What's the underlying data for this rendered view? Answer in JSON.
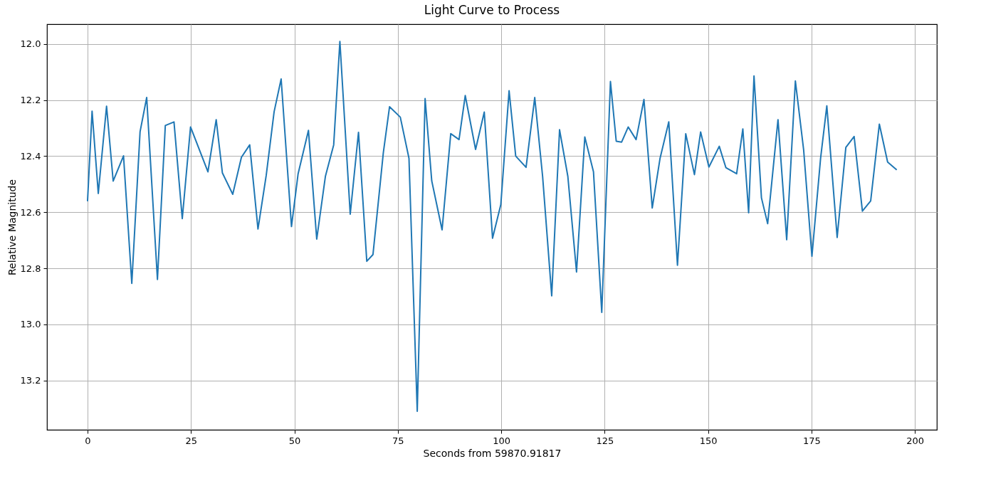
{
  "chart_data": {
    "type": "line",
    "title": "Light Curve to Process",
    "xlabel": "Seconds from 59870.91817",
    "ylabel": "Relative Magnitude",
    "x": [
      0,
      1.1,
      2.6,
      4.6,
      6.2,
      8.7,
      10.7,
      12.7,
      14.3,
      16.9,
      18.8,
      20.9,
      22.9,
      24.9,
      29.1,
      31.1,
      32.6,
      35.1,
      37.2,
      39.2,
      41.2,
      43.2,
      45.1,
      46.8,
      49.3,
      50.9,
      53.4,
      55.4,
      57.5,
      59.5,
      61.0,
      63.5,
      65.5,
      67.5,
      69.0,
      71.5,
      73.0,
      75.6,
      77.7,
      79.7,
      81.6,
      83.2,
      85.7,
      87.8,
      89.8,
      91.3,
      93.8,
      95.9,
      97.9,
      99.9,
      101.9,
      103.5,
      106.0,
      108.1,
      110.0,
      112.2,
      114.1,
      116.1,
      118.2,
      120.2,
      122.3,
      124.3,
      126.4,
      127.8,
      129.1,
      130.7,
      132.6,
      134.5,
      136.5,
      138.4,
      140.5,
      142.6,
      144.6,
      146.7,
      148.2,
      150.2,
      152.7,
      154.3,
      156.9,
      158.4,
      159.8,
      161.1,
      162.9,
      164.4,
      166.9,
      169.0,
      171.1,
      173.1,
      175.1,
      177.2,
      178.7,
      181.2,
      183.3,
      185.3,
      187.3,
      189.3,
      191.4,
      193.4,
      195.6
    ],
    "series": [
      {
        "color": "#1f77b4",
        "values": [
          12.561,
          12.24,
          12.533,
          12.222,
          12.489,
          12.399,
          12.854,
          12.313,
          12.191,
          12.84,
          12.291,
          12.278,
          12.623,
          12.296,
          12.456,
          12.27,
          12.46,
          12.536,
          12.404,
          12.36,
          12.66,
          12.468,
          12.242,
          12.125,
          12.651,
          12.463,
          12.308,
          12.696,
          12.472,
          12.36,
          11.991,
          12.607,
          12.315,
          12.775,
          12.751,
          12.388,
          12.224,
          12.261,
          12.408,
          13.31,
          12.195,
          12.488,
          12.663,
          12.32,
          12.341,
          12.184,
          12.376,
          12.243,
          12.693,
          12.573,
          12.167,
          12.4,
          12.44,
          12.191,
          12.472,
          12.898,
          12.306,
          12.472,
          12.813,
          12.332,
          12.456,
          12.957,
          12.134,
          12.347,
          12.35,
          12.296,
          12.341,
          12.198,
          12.585,
          12.407,
          12.278,
          12.789,
          12.32,
          12.466,
          12.314,
          12.439,
          12.365,
          12.441,
          12.463,
          12.303,
          12.602,
          12.114,
          12.549,
          12.641,
          12.27,
          12.698,
          12.132,
          12.378,
          12.757,
          12.407,
          12.221,
          12.69,
          12.369,
          12.33,
          12.596,
          12.56,
          12.286,
          12.421,
          12.449
        ]
      }
    ],
    "xlim": [
      -9.8,
      205.3
    ],
    "ylim": [
      13.376,
      11.9295
    ],
    "xticks": [
      0,
      25,
      50,
      75,
      100,
      125,
      150,
      175,
      200
    ],
    "yticks": [
      {
        "value": 12,
        "label": "12.0"
      },
      12.2,
      12.4,
      12.6,
      12.8,
      {
        "value": 13,
        "label": "13.0"
      },
      13.2
    ],
    "grid": true
  }
}
